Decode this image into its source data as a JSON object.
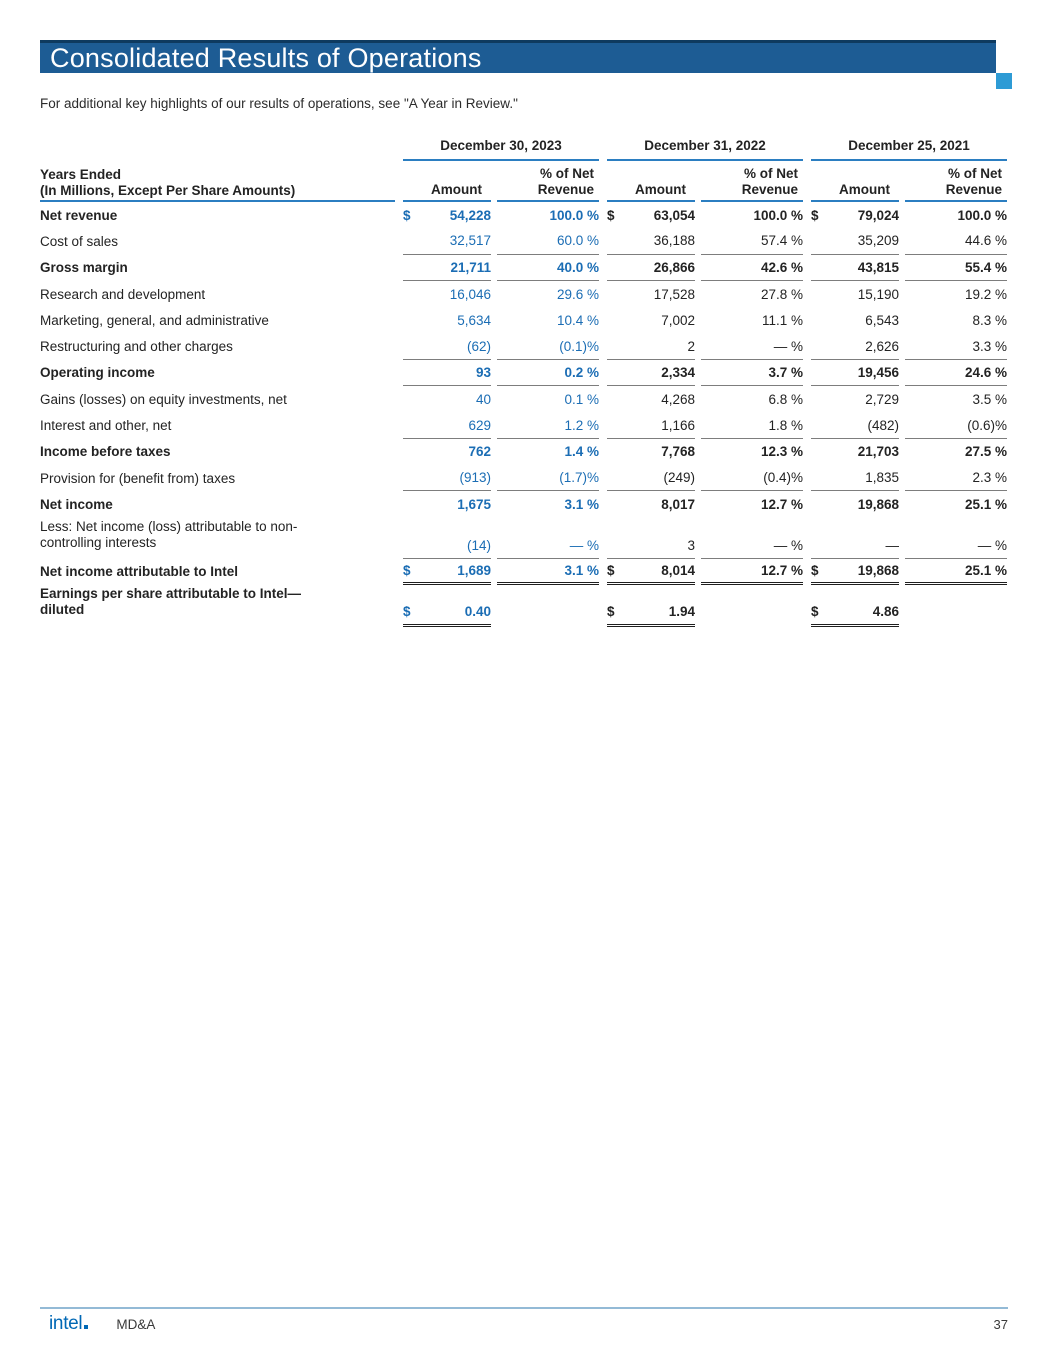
{
  "page": {
    "title": "Consolidated Results of Operations",
    "subtitle": "For additional key highlights of our results of operations, see \"A Year in Review.\""
  },
  "colors": {
    "header_bar": "#1d5c94",
    "header_bar_top_edge": "#0e3a5f",
    "accent_square": "#2e9bd5",
    "current_year_text": "#1b6db4",
    "rule_blue": "#2b7ec1",
    "rule_gray": "#7d7d7d",
    "intel_brand_blue": "#0068b5"
  },
  "table": {
    "row_header": {
      "line1": "Years Ended",
      "line2": "(In Millions, Except Per Share Amounts)"
    },
    "periods": [
      "December 30, 2023",
      "December 31, 2022",
      "December 25, 2021"
    ],
    "col_headers": {
      "amount": "Amount",
      "pct_line1": "% of Net",
      "pct_line2": "Revenue"
    },
    "rows": [
      {
        "label": "Net revenue",
        "bold": true,
        "rule": "none",
        "cells": [
          [
            "$",
            "54,228",
            "100.0 %"
          ],
          [
            "$",
            "63,054",
            "100.0 %"
          ],
          [
            "$",
            "79,024",
            "100.0 %"
          ]
        ]
      },
      {
        "label": "Cost of sales",
        "bold": false,
        "rule": "single",
        "cells": [
          [
            "",
            "32,517",
            "60.0 %"
          ],
          [
            "",
            "36,188",
            "57.4 %"
          ],
          [
            "",
            "35,209",
            "44.6 %"
          ]
        ]
      },
      {
        "label": "Gross margin",
        "bold": true,
        "rule": "single",
        "cells": [
          [
            "",
            "21,711",
            "40.0 %"
          ],
          [
            "",
            "26,866",
            "42.6 %"
          ],
          [
            "",
            "43,815",
            "55.4 %"
          ]
        ]
      },
      {
        "label": "Research and development",
        "bold": false,
        "rule": "none",
        "cells": [
          [
            "",
            "16,046",
            "29.6 %"
          ],
          [
            "",
            "17,528",
            "27.8 %"
          ],
          [
            "",
            "15,190",
            "19.2 %"
          ]
        ]
      },
      {
        "label": "Marketing, general, and administrative",
        "bold": false,
        "rule": "none",
        "cells": [
          [
            "",
            "5,634",
            "10.4 %"
          ],
          [
            "",
            "7,002",
            "11.1 %"
          ],
          [
            "",
            "6,543",
            "8.3 %"
          ]
        ]
      },
      {
        "label": "Restructuring and other charges",
        "bold": false,
        "rule": "single",
        "cells": [
          [
            "",
            "(62)",
            "(0.1)%"
          ],
          [
            "",
            "2",
            "— %"
          ],
          [
            "",
            "2,626",
            "3.3 %"
          ]
        ]
      },
      {
        "label": "Operating income",
        "bold": true,
        "rule": "single",
        "cells": [
          [
            "",
            "93",
            "0.2 %"
          ],
          [
            "",
            "2,334",
            "3.7 %"
          ],
          [
            "",
            "19,456",
            "24.6 %"
          ]
        ]
      },
      {
        "label": "Gains (losses) on equity investments, net",
        "bold": false,
        "rule": "none",
        "cells": [
          [
            "",
            "40",
            "0.1 %"
          ],
          [
            "",
            "4,268",
            "6.8 %"
          ],
          [
            "",
            "2,729",
            "3.5 %"
          ]
        ]
      },
      {
        "label": "Interest and other, net",
        "bold": false,
        "rule": "single",
        "cells": [
          [
            "",
            "629",
            "1.2 %"
          ],
          [
            "",
            "1,166",
            "1.8 %"
          ],
          [
            "",
            "(482)",
            "(0.6)%"
          ]
        ]
      },
      {
        "label": "Income before taxes",
        "bold": true,
        "rule": "none",
        "cells": [
          [
            "",
            "762",
            "1.4 %"
          ],
          [
            "",
            "7,768",
            "12.3 %"
          ],
          [
            "",
            "21,703",
            "27.5 %"
          ]
        ]
      },
      {
        "label": "Provision for (benefit from) taxes",
        "bold": false,
        "rule": "single",
        "cells": [
          [
            "",
            "(913)",
            "(1.7)%"
          ],
          [
            "",
            "(249)",
            "(0.4)%"
          ],
          [
            "",
            "1,835",
            "2.3 %"
          ]
        ]
      },
      {
        "label": "Net income",
        "bold": true,
        "rule": "none",
        "cells": [
          [
            "",
            "1,675",
            "3.1 %"
          ],
          [
            "",
            "8,017",
            "12.7 %"
          ],
          [
            "",
            "19,868",
            "25.1 %"
          ]
        ]
      },
      {
        "label": "Less: Net income (loss) attributable to non-",
        "label2": "controlling interests",
        "bold": false,
        "rule": "single",
        "size": "tall",
        "cells": [
          [
            "",
            "(14)",
            "— %"
          ],
          [
            "",
            "3",
            "— %"
          ],
          [
            "",
            "—",
            "— %"
          ]
        ]
      },
      {
        "label": "Net income attributable to Intel",
        "bold": true,
        "rule": "double",
        "cells": [
          [
            "$",
            "1,689",
            "3.1 %"
          ],
          [
            "$",
            "8,014",
            "12.7 %"
          ],
          [
            "$",
            "19,868",
            "25.1 %"
          ]
        ]
      },
      {
        "label": "Earnings per share attributable to Intel—",
        "label2": "diluted",
        "bold": true,
        "rule": "double-amt",
        "size": "tall2",
        "cells": [
          [
            "$",
            "0.40",
            ""
          ],
          [
            "$",
            "1.94",
            ""
          ],
          [
            "$",
            "4.86",
            ""
          ]
        ]
      }
    ]
  },
  "footer": {
    "brand": "intel",
    "section": "MD&A",
    "page_number": "37"
  }
}
